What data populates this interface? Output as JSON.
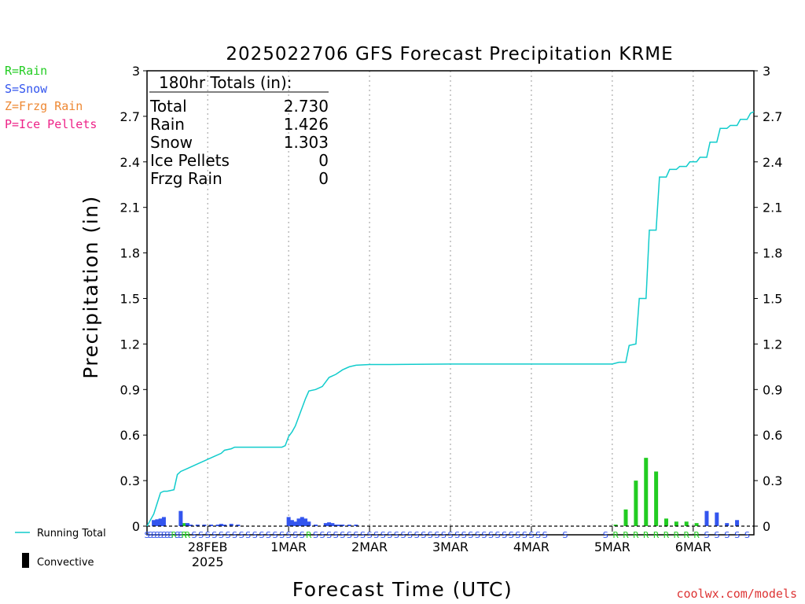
{
  "chart_data": {
    "type": "bar+line",
    "title": "2025022706 GFS Forecast Precipitation KRME",
    "xlabel": "Forecast Time (UTC)",
    "ylabel": "Precipitation (in)",
    "ylim": [
      0,
      3
    ],
    "yticks": [
      "0",
      "0.3",
      "0.6",
      "0.9",
      "1.2",
      "1.5",
      "1.8",
      "2.1",
      "2.4",
      "2.7",
      "3"
    ],
    "grid": "vertical dotted lines at each day boundary",
    "x_range_hours": [
      0,
      180
    ],
    "x_ticks": [
      {
        "hour": 18,
        "label": "28FEB",
        "sublabel": "2025"
      },
      {
        "hour": 42,
        "label": "1MAR",
        "sublabel": ""
      },
      {
        "hour": 66,
        "label": "2MAR",
        "sublabel": ""
      },
      {
        "hour": 90,
        "label": "3MAR",
        "sublabel": ""
      },
      {
        "hour": 114,
        "label": "4MAR",
        "sublabel": ""
      },
      {
        "hour": 138,
        "label": "5MAR",
        "sublabel": ""
      },
      {
        "hour": 162,
        "label": "6MAR",
        "sublabel": ""
      }
    ],
    "legend_ptype": [
      {
        "label": "R=Rain",
        "color": "#22cc22"
      },
      {
        "label": "S=Snow",
        "color": "#3355ee"
      },
      {
        "label": "Z=Frzg Rain",
        "color": "#ee8833"
      },
      {
        "label": "P=Ice Pellets",
        "color": "#ee2288"
      }
    ],
    "legend_lines": [
      {
        "label": "Running Total",
        "color": "#11cccc"
      },
      {
        "label": "Convective",
        "color": "#000000"
      }
    ],
    "totals_box": {
      "header": "180hr Totals (in):",
      "rows": [
        {
          "name": "Total",
          "value": "2.730"
        },
        {
          "name": "Rain",
          "value": "1.426"
        },
        {
          "name": "Snow",
          "value": "1.303"
        },
        {
          "name": "Ice Pellets",
          "value": "0"
        },
        {
          "name": "Frzg Rain",
          "value": "0"
        }
      ]
    },
    "running_total": {
      "name": "Running Total",
      "points": [
        [
          0,
          0
        ],
        [
          2,
          0.08
        ],
        [
          3,
          0.15
        ],
        [
          4,
          0.22
        ],
        [
          5,
          0.23
        ],
        [
          6,
          0.23
        ],
        [
          8,
          0.24
        ],
        [
          9,
          0.34
        ],
        [
          10,
          0.36
        ],
        [
          12,
          0.38
        ],
        [
          14,
          0.4
        ],
        [
          16,
          0.42
        ],
        [
          18,
          0.44
        ],
        [
          20,
          0.46
        ],
        [
          22,
          0.48
        ],
        [
          23,
          0.5
        ],
        [
          25,
          0.51
        ],
        [
          26,
          0.52
        ],
        [
          28,
          0.52
        ],
        [
          32,
          0.52
        ],
        [
          36,
          0.52
        ],
        [
          40,
          0.52
        ],
        [
          41,
          0.53
        ],
        [
          42,
          0.59
        ],
        [
          43,
          0.62
        ],
        [
          44,
          0.66
        ],
        [
          45,
          0.72
        ],
        [
          46,
          0.78
        ],
        [
          47,
          0.84
        ],
        [
          48,
          0.89
        ],
        [
          50,
          0.9
        ],
        [
          52,
          0.92
        ],
        [
          54,
          0.98
        ],
        [
          56,
          1.0
        ],
        [
          58,
          1.03
        ],
        [
          60,
          1.05
        ],
        [
          62,
          1.06
        ],
        [
          66,
          1.065
        ],
        [
          72,
          1.065
        ],
        [
          90,
          1.068
        ],
        [
          114,
          1.068
        ],
        [
          138,
          1.068
        ],
        [
          140,
          1.08
        ],
        [
          142,
          1.08
        ],
        [
          143,
          1.19
        ],
        [
          145,
          1.2
        ],
        [
          146,
          1.5
        ],
        [
          148,
          1.5
        ],
        [
          149,
          1.95
        ],
        [
          151,
          1.95
        ],
        [
          152,
          2.3
        ],
        [
          154,
          2.3
        ],
        [
          155,
          2.35
        ],
        [
          157,
          2.35
        ],
        [
          158,
          2.37
        ],
        [
          160,
          2.37
        ],
        [
          161,
          2.4
        ],
        [
          163,
          2.4
        ],
        [
          164,
          2.43
        ],
        [
          166,
          2.43
        ],
        [
          167,
          2.53
        ],
        [
          169,
          2.53
        ],
        [
          170,
          2.62
        ],
        [
          172,
          2.62
        ],
        [
          173,
          2.64
        ],
        [
          175,
          2.64
        ],
        [
          176,
          2.68
        ],
        [
          178,
          2.68
        ],
        [
          179,
          2.72
        ],
        [
          180,
          2.73
        ]
      ]
    },
    "bars": {
      "series": [
        {
          "name": "Rain",
          "color": "#22cc22",
          "points": [
            [
              11,
              0.02
            ],
            [
              12,
              0.01
            ],
            [
              139,
              0.01
            ],
            [
              142,
              0.11
            ],
            [
              145,
              0.3
            ],
            [
              148,
              0.45
            ],
            [
              151,
              0.36
            ],
            [
              154,
              0.05
            ],
            [
              157,
              0.03
            ],
            [
              160,
              0.03
            ],
            [
              163,
              0.02
            ]
          ]
        },
        {
          "name": "Snow",
          "color": "#3355ee",
          "points": [
            [
              2,
              0.04
            ],
            [
              3,
              0.045
            ],
            [
              4,
              0.05
            ],
            [
              5,
              0.06
            ],
            [
              10,
              0.1
            ],
            [
              12,
              0.02
            ],
            [
              13,
              0.01
            ],
            [
              15,
              0.01
            ],
            [
              17,
              0.01
            ],
            [
              19,
              0.01
            ],
            [
              21,
              0.01
            ],
            [
              22,
              0.015
            ],
            [
              23,
              0.01
            ],
            [
              25,
              0.015
            ],
            [
              27,
              0.01
            ],
            [
              42,
              0.06
            ],
            [
              43,
              0.04
            ],
            [
              44,
              0.03
            ],
            [
              45,
              0.05
            ],
            [
              46,
              0.06
            ],
            [
              47,
              0.05
            ],
            [
              48,
              0.03
            ],
            [
              50,
              0.01
            ],
            [
              53,
              0.02
            ],
            [
              54,
              0.025
            ],
            [
              55,
              0.02
            ],
            [
              56,
              0.01
            ],
            [
              57,
              0.01
            ],
            [
              58,
              0.01
            ],
            [
              60,
              0.01
            ],
            [
              62,
              0.01
            ],
            [
              166,
              0.1
            ],
            [
              169,
              0.09
            ],
            [
              172,
              0.02
            ],
            [
              175,
              0.04
            ]
          ]
        }
      ]
    },
    "ptype_letters": [
      {
        "hour": 0,
        "letter": "S"
      },
      {
        "hour": 1,
        "letter": "S"
      },
      {
        "hour": 2,
        "letter": "S"
      },
      {
        "hour": 3,
        "letter": "S"
      },
      {
        "hour": 4,
        "letter": "S"
      },
      {
        "hour": 5,
        "letter": "S"
      },
      {
        "hour": 6,
        "letter": "S"
      },
      {
        "hour": 7,
        "letter": "S"
      },
      {
        "hour": 8,
        "letter": "R"
      },
      {
        "hour": 9,
        "letter": "S"
      },
      {
        "hour": 10,
        "letter": "S"
      },
      {
        "hour": 11,
        "letter": "R"
      },
      {
        "hour": 12,
        "letter": "R"
      },
      {
        "hour": 14,
        "letter": "S"
      },
      {
        "hour": 16,
        "letter": "S"
      },
      {
        "hour": 18,
        "letter": "S"
      },
      {
        "hour": 20,
        "letter": "S"
      },
      {
        "hour": 22,
        "letter": "S"
      },
      {
        "hour": 24,
        "letter": "S"
      },
      {
        "hour": 26,
        "letter": "S"
      },
      {
        "hour": 28,
        "letter": "S"
      },
      {
        "hour": 30,
        "letter": "S"
      },
      {
        "hour": 32,
        "letter": "S"
      },
      {
        "hour": 34,
        "letter": "S"
      },
      {
        "hour": 36,
        "letter": "S"
      },
      {
        "hour": 38,
        "letter": "S"
      },
      {
        "hour": 40,
        "letter": "S"
      },
      {
        "hour": 42,
        "letter": "S"
      },
      {
        "hour": 44,
        "letter": "S"
      },
      {
        "hour": 46,
        "letter": "S"
      },
      {
        "hour": 48,
        "letter": "R"
      },
      {
        "hour": 50,
        "letter": "S"
      },
      {
        "hour": 52,
        "letter": "S"
      },
      {
        "hour": 54,
        "letter": "S"
      },
      {
        "hour": 56,
        "letter": "S"
      },
      {
        "hour": 58,
        "letter": "S"
      },
      {
        "hour": 60,
        "letter": "S"
      },
      {
        "hour": 62,
        "letter": "S"
      },
      {
        "hour": 64,
        "letter": "S"
      },
      {
        "hour": 66,
        "letter": "S"
      },
      {
        "hour": 68,
        "letter": "S"
      },
      {
        "hour": 70,
        "letter": "S"
      },
      {
        "hour": 72,
        "letter": "S"
      },
      {
        "hour": 74,
        "letter": "S"
      },
      {
        "hour": 76,
        "letter": "S"
      },
      {
        "hour": 78,
        "letter": "S"
      },
      {
        "hour": 80,
        "letter": "S"
      },
      {
        "hour": 82,
        "letter": "S"
      },
      {
        "hour": 84,
        "letter": "S"
      },
      {
        "hour": 86,
        "letter": "S"
      },
      {
        "hour": 88,
        "letter": "S"
      },
      {
        "hour": 90,
        "letter": "S"
      },
      {
        "hour": 92,
        "letter": "S"
      },
      {
        "hour": 94,
        "letter": "S"
      },
      {
        "hour": 96,
        "letter": "S"
      },
      {
        "hour": 98,
        "letter": "S"
      },
      {
        "hour": 100,
        "letter": "S"
      },
      {
        "hour": 102,
        "letter": "S"
      },
      {
        "hour": 104,
        "letter": "S"
      },
      {
        "hour": 106,
        "letter": "S"
      },
      {
        "hour": 108,
        "letter": "S"
      },
      {
        "hour": 110,
        "letter": "S"
      },
      {
        "hour": 112,
        "letter": "S"
      },
      {
        "hour": 114,
        "letter": "S"
      },
      {
        "hour": 116,
        "letter": "S"
      },
      {
        "hour": 118,
        "letter": "S"
      },
      {
        "hour": 124,
        "letter": "S"
      },
      {
        "hour": 136,
        "letter": "S"
      },
      {
        "hour": 139,
        "letter": "R"
      },
      {
        "hour": 142,
        "letter": "R"
      },
      {
        "hour": 145,
        "letter": "R"
      },
      {
        "hour": 148,
        "letter": "R"
      },
      {
        "hour": 151,
        "letter": "R"
      },
      {
        "hour": 154,
        "letter": "R"
      },
      {
        "hour": 157,
        "letter": "R"
      },
      {
        "hour": 160,
        "letter": "R"
      },
      {
        "hour": 163,
        "letter": "R"
      },
      {
        "hour": 166,
        "letter": "S"
      },
      {
        "hour": 169,
        "letter": "S"
      },
      {
        "hour": 172,
        "letter": "S"
      },
      {
        "hour": 175,
        "letter": "S"
      },
      {
        "hour": 178,
        "letter": "S"
      }
    ]
  },
  "credit": "coolwx.com/models"
}
